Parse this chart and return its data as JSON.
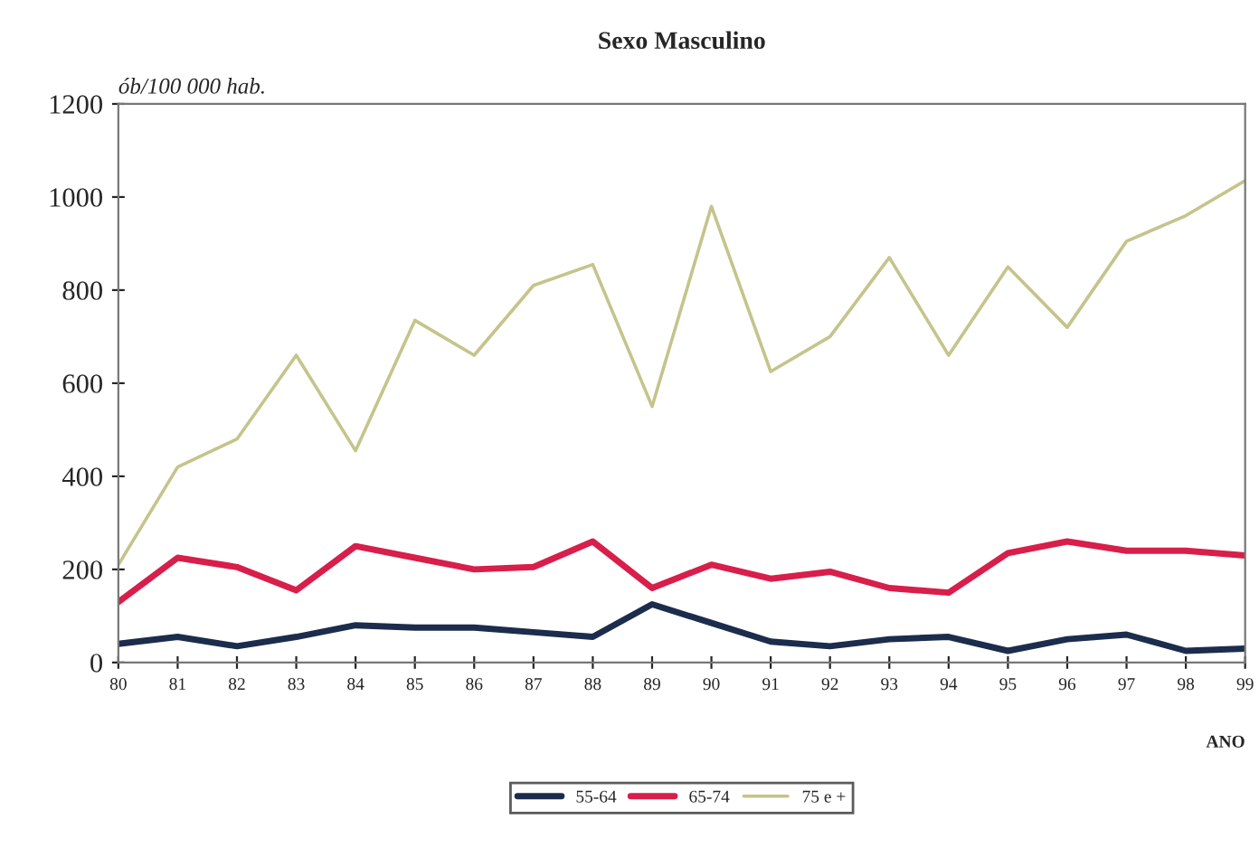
{
  "chart_data": {
    "type": "line",
    "title": "Sexo Masculino",
    "ylabel": "ób/100 000 hab.",
    "xlabel": "ANO",
    "categories": [
      "80",
      "81",
      "82",
      "83",
      "84",
      "85",
      "86",
      "87",
      "88",
      "89",
      "90",
      "91",
      "92",
      "93",
      "94",
      "95",
      "96",
      "97",
      "98",
      "99"
    ],
    "series": [
      {
        "name": "55-64",
        "color": "#1c2c4c",
        "values": [
          40,
          55,
          35,
          55,
          80,
          75,
          75,
          65,
          55,
          125,
          85,
          45,
          35,
          50,
          55,
          25,
          50,
          60,
          25,
          30
        ]
      },
      {
        "name": "65-74",
        "color": "#d81e4a",
        "values": [
          130,
          225,
          205,
          155,
          250,
          225,
          200,
          205,
          260,
          160,
          210,
          180,
          195,
          160,
          150,
          235,
          260,
          240,
          240,
          230
        ]
      },
      {
        "name": "75 e +",
        "color": "#c4c48c",
        "values": [
          210,
          420,
          480,
          660,
          455,
          735,
          660,
          810,
          855,
          550,
          980,
          625,
          700,
          870,
          660,
          850,
          720,
          905,
          960,
          1035
        ]
      }
    ],
    "ylim": [
      0,
      1200
    ],
    "yticks": [
      0,
      200,
      400,
      600,
      800,
      1000,
      1200
    ],
    "grid": false,
    "legend": "bottom",
    "marker": "none",
    "line_style": "solid"
  }
}
